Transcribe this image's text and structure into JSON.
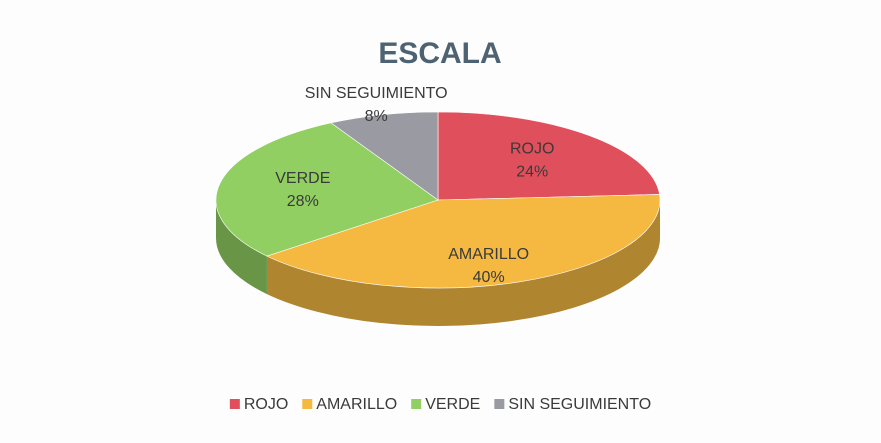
{
  "chart_data": {
    "type": "pie3d",
    "title": "ESCALA",
    "categories": [
      "ROJO",
      "AMARILLO",
      "VERDE",
      "SIN SEGUIMIENTO"
    ],
    "values": [
      24,
      40,
      28,
      8
    ],
    "value_labels": [
      "24%",
      "40%",
      "28%",
      "8%"
    ],
    "colors": [
      "#e0505c",
      "#f5b942",
      "#92cf62",
      "#9a9aa2"
    ],
    "legend": "bottom"
  }
}
